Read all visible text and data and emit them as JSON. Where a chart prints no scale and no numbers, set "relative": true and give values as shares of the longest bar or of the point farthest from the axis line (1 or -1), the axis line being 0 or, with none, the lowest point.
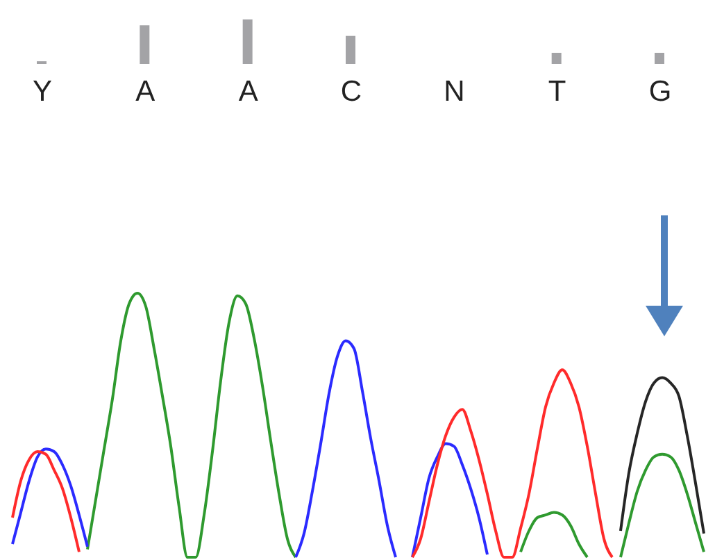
{
  "chart_data": [
    {
      "type": "bar",
      "relative": true,
      "categories": [
        "Y",
        "A",
        "A",
        "C",
        "N",
        "T",
        "G"
      ],
      "values": [
        0.06,
        0.87,
        1,
        0.63,
        0,
        0.25,
        0.25
      ],
      "color": "#a3a3a6"
    },
    {
      "type": "line",
      "relative": true,
      "categories": [
        null,
        null,
        null,
        null,
        null,
        null,
        null,
        null,
        null,
        null,
        null,
        null,
        null,
        null,
        null,
        null,
        null,
        null,
        null,
        null,
        null,
        null,
        null,
        null,
        null,
        null,
        null,
        null,
        null,
        null,
        null,
        null,
        null,
        null,
        null,
        null,
        null,
        null,
        null,
        null,
        null,
        null,
        null,
        null,
        null,
        null,
        null,
        null,
        null,
        null,
        null,
        null,
        null,
        null,
        null,
        null,
        null,
        null,
        null,
        null,
        null,
        null,
        null,
        null,
        null,
        null,
        null,
        null,
        null,
        null,
        null,
        null,
        null,
        null,
        null,
        null,
        null,
        null,
        null,
        null,
        null,
        null,
        null,
        null
      ],
      "series": [
        {
          "color": "#2f9a2f",
          "values": [
            null,
            null,
            null,
            null,
            null,
            null,
            null,
            null,
            null,
            0.03,
            0.22,
            0.41,
            0.6,
            0.82,
            0.96,
            1,
            0.95,
            0.79,
            0.61,
            0.42,
            0.19,
            0,
            0,
            0.16,
            0.4,
            0.67,
            0.89,
            0.99,
            0.96,
            0.83,
            0.65,
            0.44,
            0.24,
            0.07,
            0,
            null,
            null,
            null,
            null,
            null,
            null,
            null,
            null,
            null,
            null,
            null,
            null,
            null,
            null,
            null,
            null,
            null,
            null,
            null,
            null,
            null,
            null,
            null,
            null,
            null,
            null,
            0.02,
            0.1,
            0.15,
            0.16,
            0.17,
            0.16,
            0.12,
            0.05,
            0,
            null,
            null,
            null,
            0,
            0.13,
            0.25,
            0.33,
            0.38,
            0.39,
            0.38,
            0.33,
            0.24,
            0.13,
            0.02
          ]
        },
        {
          "color": "#2b2bff",
          "values": [
            0.05,
            0.17,
            0.29,
            0.38,
            0.41,
            0.4,
            0.35,
            0.27,
            0.16,
            0.04,
            null,
            null,
            null,
            null,
            null,
            null,
            null,
            null,
            null,
            null,
            null,
            null,
            null,
            null,
            null,
            null,
            null,
            null,
            null,
            null,
            null,
            null,
            null,
            null,
            0,
            0.09,
            0.25,
            0.43,
            0.62,
            0.76,
            0.82,
            0.79,
            0.63,
            0.45,
            0.29,
            0.12,
            0,
            null,
            0,
            0.15,
            0.3,
            0.38,
            0.43,
            0.42,
            0.35,
            0.26,
            0.15,
            0.01,
            null,
            null,
            null,
            null,
            null,
            null,
            null,
            null,
            null,
            null,
            null,
            null,
            null,
            null,
            null,
            null,
            null,
            null,
            null,
            null,
            null,
            null,
            null,
            null,
            null,
            null
          ]
        },
        {
          "color": "#262626",
          "values": [
            null,
            null,
            null,
            null,
            null,
            null,
            null,
            null,
            null,
            null,
            null,
            null,
            null,
            null,
            null,
            null,
            null,
            null,
            null,
            null,
            null,
            null,
            null,
            null,
            null,
            null,
            null,
            null,
            null,
            null,
            null,
            null,
            null,
            null,
            null,
            null,
            null,
            null,
            null,
            null,
            null,
            null,
            null,
            null,
            null,
            null,
            null,
            null,
            null,
            null,
            null,
            null,
            null,
            null,
            null,
            null,
            null,
            null,
            null,
            null,
            null,
            null,
            null,
            null,
            null,
            null,
            null,
            null,
            null,
            null,
            null,
            null,
            null,
            0.1,
            0.32,
            0.47,
            0.59,
            0.66,
            0.68,
            0.66,
            0.61,
            0.46,
            0.28,
            0.09
          ]
        },
        {
          "color": "#ff2b2b",
          "values": [
            0.15,
            0.29,
            0.37,
            0.4,
            0.39,
            0.33,
            0.26,
            0.15,
            0.02,
            null,
            null,
            null,
            null,
            null,
            null,
            null,
            null,
            null,
            null,
            null,
            null,
            null,
            null,
            null,
            null,
            null,
            null,
            null,
            null,
            null,
            null,
            null,
            null,
            null,
            null,
            null,
            null,
            null,
            null,
            null,
            null,
            null,
            null,
            null,
            null,
            null,
            null,
            null,
            0,
            0.07,
            0.21,
            0.35,
            0.46,
            0.53,
            0.56,
            0.48,
            0.37,
            0.24,
            0.1,
            0,
            0,
            0.11,
            0.24,
            0.41,
            0.57,
            0.66,
            0.71,
            0.66,
            0.57,
            0.42,
            0.24,
            0.07,
            0,
            null,
            null,
            null,
            null,
            null,
            null,
            null,
            null,
            null,
            null,
            null
          ]
        }
      ]
    }
  ]
}
